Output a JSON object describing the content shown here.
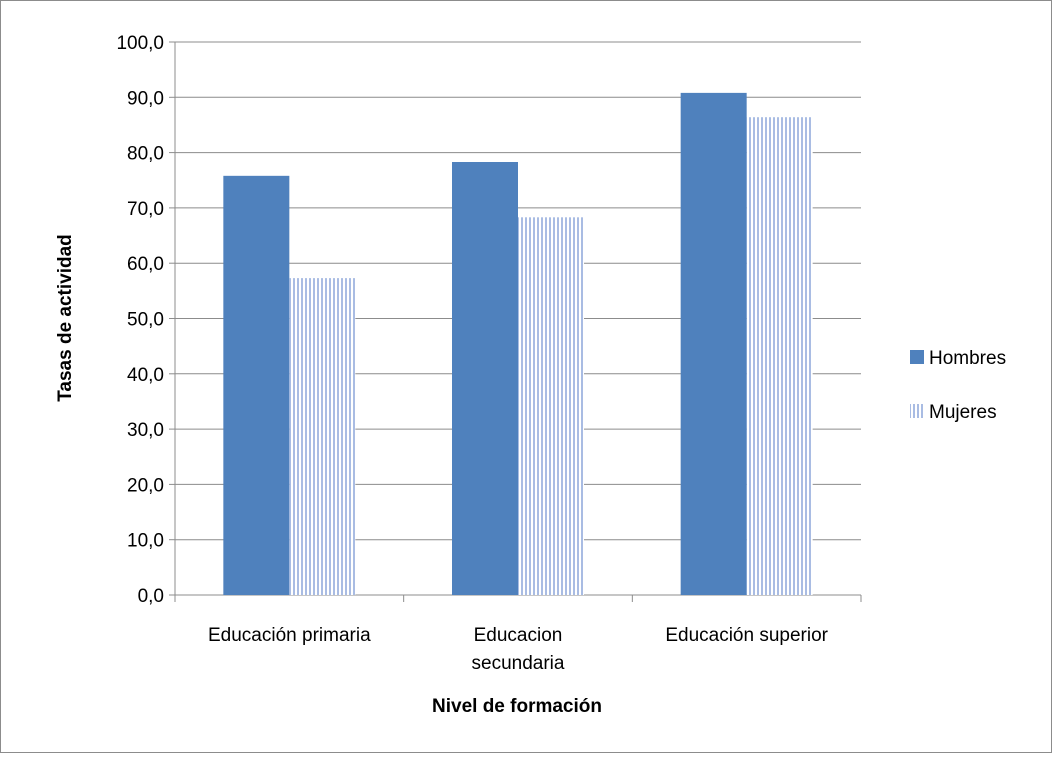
{
  "chart_data": {
    "type": "bar",
    "title": "",
    "xlabel": "Nivel de formación",
    "ylabel": "Tasas de actividad",
    "categories": [
      [
        "Educación primaria"
      ],
      [
        "Educacion",
        "secundaria"
      ],
      [
        "Educación superior"
      ]
    ],
    "series": [
      {
        "name": "Hombres",
        "values": [
          75.8,
          78.3,
          90.8
        ],
        "color": "#4F81BD",
        "fill": "solid"
      },
      {
        "name": "Mujeres",
        "values": [
          57.3,
          68.3,
          86.4
        ],
        "color": "#A9BCE3",
        "fill": "vertical-stripes"
      }
    ],
    "ylim": [
      0,
      100
    ],
    "yticks": [
      0,
      10,
      20,
      30,
      40,
      50,
      60,
      70,
      80,
      90,
      100
    ],
    "ytick_labels": [
      "0,0",
      "10,0",
      "20,0",
      "30,0",
      "40,0",
      "50,0",
      "60,0",
      "70,0",
      "80,0",
      "90,0",
      "100,0"
    ],
    "grid": true,
    "legend_position": "right"
  }
}
